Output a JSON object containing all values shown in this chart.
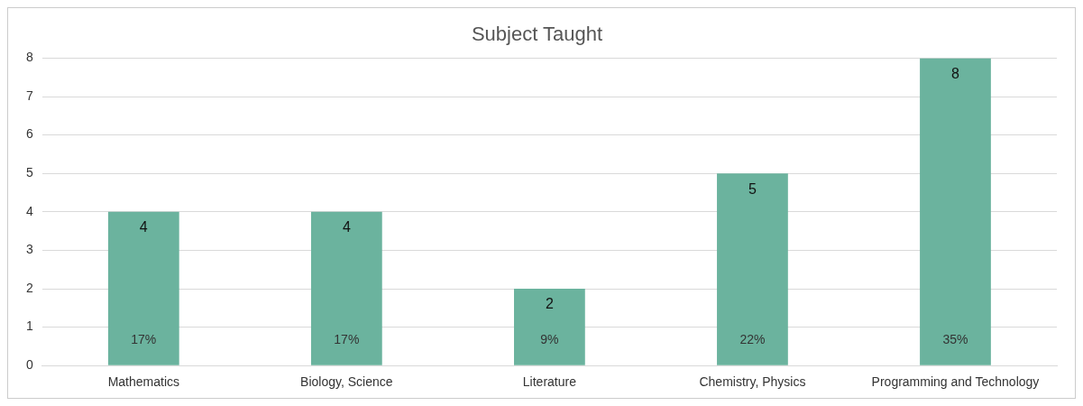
{
  "chart_data": {
    "type": "bar",
    "title": "Subject Taught",
    "categories": [
      "Mathematics",
      "Biology, Science",
      "Literature",
      "Chemistry, Physics",
      "Programming and Technology"
    ],
    "values": [
      4,
      4,
      2,
      5,
      8
    ],
    "color": "#6bb39e",
    "ylim": [
      0,
      8
    ],
    "yticks": [
      0,
      1,
      2,
      3,
      4,
      5,
      6,
      7,
      8
    ],
    "grid": "y",
    "legend": false,
    "data_labels": true,
    "annotations": [
      "17%",
      "17%",
      "9%",
      "22%",
      "35%"
    ]
  }
}
